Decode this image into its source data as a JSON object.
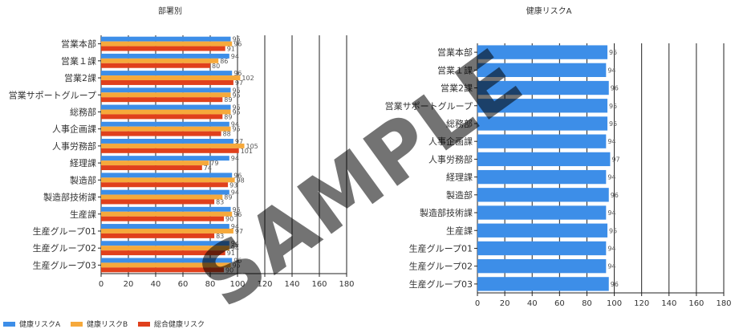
{
  "chart_data": [
    {
      "type": "bar",
      "orientation": "horizontal",
      "title": "部署別",
      "categories": [
        "営業本部",
        "営業１課",
        "営業2課",
        "営業サポートグループ",
        "総務部",
        "人事企画課",
        "人事労務部",
        "経理課",
        "製造部",
        "製造部技術課",
        "生産課",
        "生産グループ01",
        "生産グループ02",
        "生産グループ03"
      ],
      "series": [
        {
          "name": "健康リスクA",
          "color": "#3d8ee8",
          "values": [
            95,
            94,
            96,
            95,
            95,
            94,
            97,
            94,
            96,
            94,
            95,
            94,
            94,
            96
          ]
        },
        {
          "name": "健康リスクB",
          "color": "#f6a93b",
          "values": [
            96,
            86,
            102,
            95,
            95,
            95,
            105,
            79,
            98,
            89,
            96,
            97,
            94,
            95
          ]
        },
        {
          "name": "総合健康リスク",
          "color": "#e0401c",
          "values": [
            91,
            80,
            97,
            89,
            89,
            88,
            101,
            74,
            93,
            83,
            90,
            83,
            91,
            90
          ]
        }
      ],
      "xlim": [
        0,
        180
      ],
      "xticks": [
        0,
        20,
        40,
        60,
        80,
        100,
        120,
        140,
        160,
        180
      ],
      "grid": "vertical",
      "legend": "bottom-left"
    },
    {
      "type": "bar",
      "orientation": "horizontal",
      "title": "健康リスクA",
      "categories": [
        "営業本部",
        "営業１課",
        "営業2課",
        "営業サポートグループ",
        "総務部",
        "人事企画課",
        "人事労務部",
        "経理課",
        "製造部",
        "製造部技術課",
        "生産課",
        "生産グループ01",
        "生産グループ02",
        "生産グループ03"
      ],
      "series": [
        {
          "name": "健康リスクA",
          "color": "#3d8ee8",
          "values": [
            95,
            94,
            96,
            95,
            95,
            94,
            97,
            94,
            96,
            94,
            95,
            94,
            94,
            96
          ]
        }
      ],
      "xlim": [
        0,
        180
      ],
      "xticks": [
        0,
        20,
        40,
        60,
        80,
        100,
        120,
        140,
        160,
        180
      ],
      "grid": "vertical"
    }
  ],
  "watermark": "SAMPLE"
}
